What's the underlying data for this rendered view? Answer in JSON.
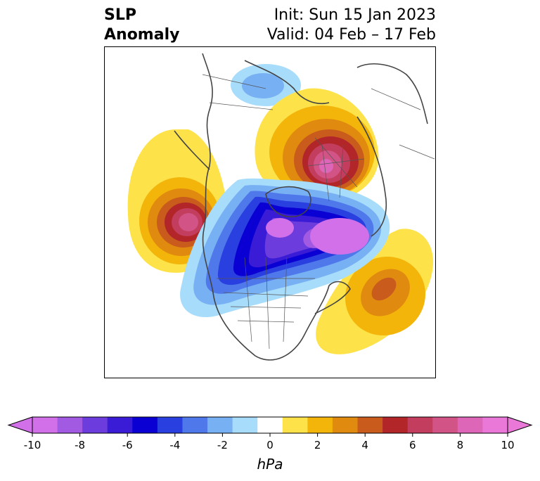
{
  "title": {
    "left_line1": "SLP",
    "left_line2": "Anomaly",
    "right_line1": "Init: Sun 15 Jan 2023",
    "right_line2": "Valid: 04 Feb – 17 Feb"
  },
  "colorbar": {
    "unit": "hPa",
    "ticks": [
      "-10",
      "-8",
      "-6",
      "-4",
      "-2",
      "0",
      "2",
      "4",
      "6",
      "8",
      "10"
    ],
    "colors": [
      "#d270ea",
      "#a35ae2",
      "#6c3cdc",
      "#3a1bd6",
      "#0a00d3",
      "#2a3fe0",
      "#4f79ea",
      "#78b0f4",
      "#a8dcfb",
      "#ffffff",
      "#fde24a",
      "#f3b50a",
      "#e08a10",
      "#c95b1c",
      "#b2262a",
      "#c23d5e",
      "#d25486",
      "#de66b8",
      "#ea78d8"
    ],
    "under_color": "#d270ea",
    "over_color": "#ea78d8"
  },
  "map": {
    "anomalies": [
      {
        "label": "high-north-atlantic-eurasia",
        "sign": "positive",
        "peak_hpa": 9
      },
      {
        "label": "high-north-pacific",
        "sign": "positive",
        "peak_hpa": 8
      },
      {
        "label": "high-central-atlantic",
        "sign": "positive",
        "peak_hpa": 5
      },
      {
        "label": "low-canada-greenland",
        "sign": "negative",
        "peak_hpa": -10
      },
      {
        "label": "low-northeast-asia",
        "sign": "negative",
        "peak_hpa": -2
      }
    ]
  }
}
